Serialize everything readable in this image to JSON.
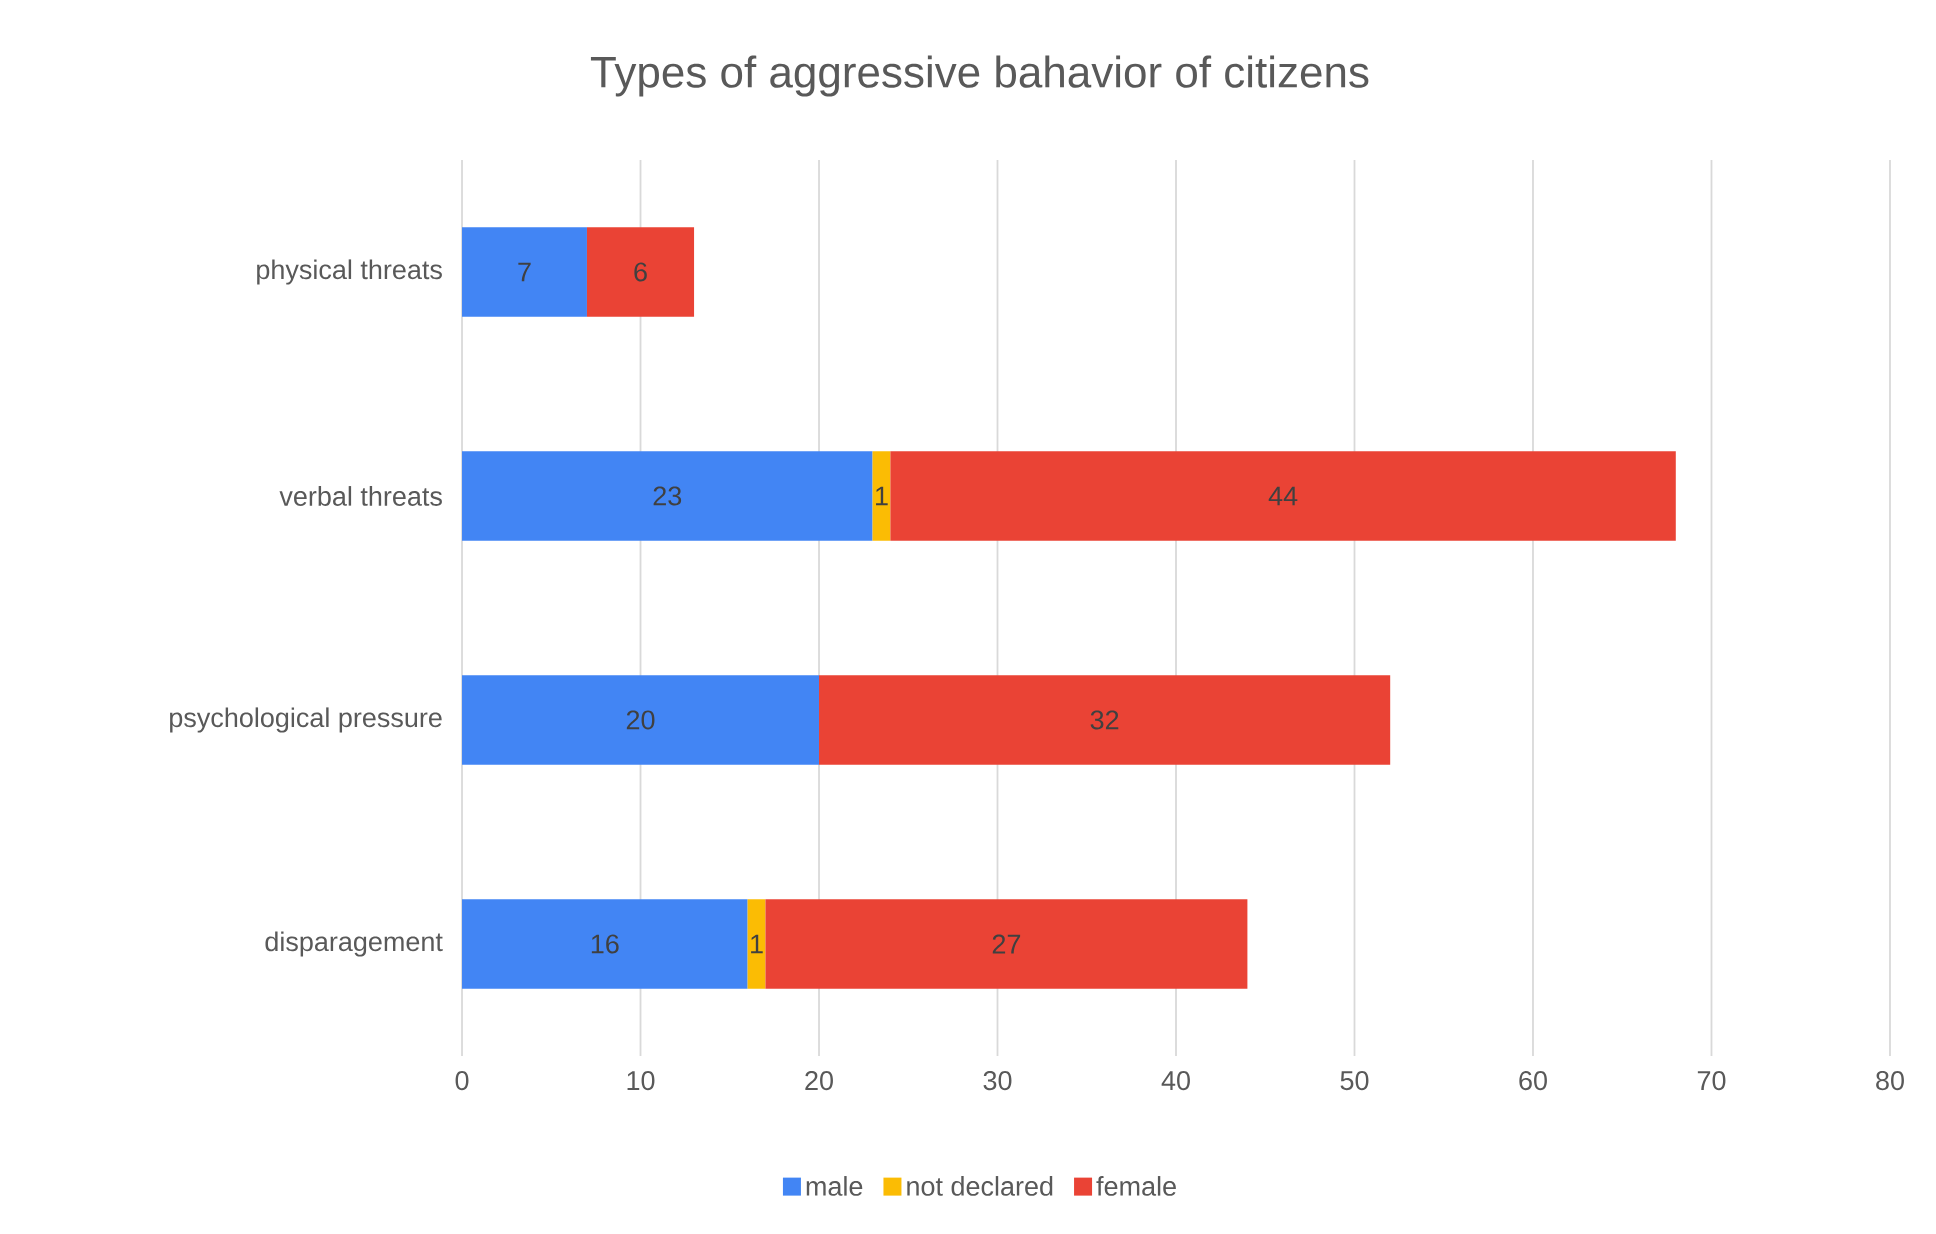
{
  "chart_data": {
    "type": "bar",
    "orientation": "horizontal",
    "stacked": true,
    "title": "Types of aggressive bahavior of citizens",
    "categories": [
      "physical threats",
      "verbal threats",
      "psychological pressure",
      "disparagement"
    ],
    "series": [
      {
        "name": "male",
        "color": "#4285f4",
        "values": [
          7,
          23,
          20,
          16
        ]
      },
      {
        "name": "not declared",
        "color": "#fbbc04",
        "values": [
          null,
          1,
          null,
          1
        ]
      },
      {
        "name": "female",
        "color": "#ea4335",
        "values": [
          6,
          44,
          32,
          27
        ]
      }
    ],
    "xlim": [
      0,
      80
    ],
    "xticks": [
      0,
      10,
      20,
      30,
      40,
      50,
      60,
      70,
      80
    ],
    "grid": "x",
    "legend": "bottom",
    "data_labels": true
  }
}
